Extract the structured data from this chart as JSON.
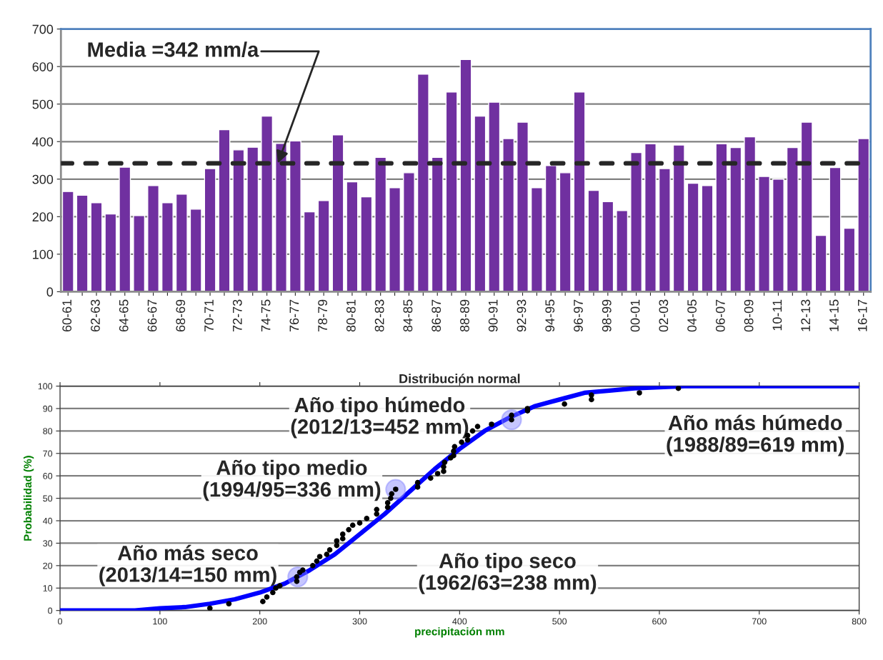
{
  "chart_data": [
    {
      "type": "bar",
      "categories": [
        "60-61",
        null,
        "62-63",
        null,
        "64-65",
        null,
        "66-67",
        null,
        "68-69",
        null,
        "70-71",
        null,
        "72-73",
        null,
        "74-75",
        null,
        "76-77",
        null,
        "78-79",
        null,
        "80-81",
        null,
        "82-83",
        null,
        "84-85",
        null,
        "86-87",
        null,
        "88-89",
        null,
        "90-91",
        null,
        "92-93",
        null,
        "94-95",
        null,
        "96-97",
        null,
        "98-99",
        null,
        "00-01",
        null,
        "02-03",
        null,
        "04-05",
        null,
        "06-07",
        null,
        "08-09",
        null,
        "10-11",
        null,
        "12-13",
        null,
        "14-15",
        null,
        "16-17"
      ],
      "values": [
        267,
        257,
        237,
        207,
        332,
        203,
        283,
        237,
        260,
        220,
        328,
        432,
        378,
        385,
        468,
        395,
        402,
        213,
        243,
        418,
        293,
        253,
        358,
        277,
        317,
        580,
        358,
        532,
        619,
        468,
        505,
        408,
        452,
        277,
        336,
        317,
        532,
        270,
        240,
        216,
        371,
        394,
        328,
        391,
        289,
        283,
        394,
        384,
        413,
        307,
        300,
        384,
        452,
        150,
        331,
        169,
        408
      ],
      "color": "#7030a0",
      "ylim": [
        0,
        700
      ],
      "yticks": [
        0,
        100,
        200,
        300,
        400,
        500,
        600,
        700
      ],
      "grid": "y",
      "legend": false,
      "ref_lines": [
        {
          "axis": "y",
          "value": 342,
          "label": "Media =342 mm/a",
          "color": "#262626",
          "line_style": "dashed"
        }
      ]
    },
    {
      "type": "scatter",
      "title": "Distribución normal",
      "xlabel": "precipitación mm",
      "ylabel": "Probabilidad (%)",
      "xlim": [
        0,
        800
      ],
      "xticks": [
        0,
        100,
        200,
        300,
        400,
        500,
        600,
        700,
        800
      ],
      "ylim": [
        0,
        100
      ],
      "yticks": [
        0,
        10,
        20,
        30,
        40,
        50,
        60,
        70,
        80,
        90,
        100
      ],
      "grid": "y",
      "legend": false,
      "series": [
        {
          "type": "line",
          "color": "#0000ff",
          "marker": "none",
          "x": [
            0,
            25,
            50,
            75,
            100,
            125,
            150,
            175,
            200,
            225,
            250,
            275,
            300,
            325,
            350,
            375,
            400,
            425,
            450,
            475,
            500,
            525,
            550,
            575,
            600,
            625,
            650,
            700,
            750,
            800
          ],
          "values": [
            0,
            0,
            0,
            0,
            1,
            1.5,
            3,
            5,
            8,
            12,
            18,
            25,
            34,
            43,
            53,
            63,
            72,
            80,
            86,
            91,
            94,
            97,
            98,
            99,
            99.5,
            100,
            100,
            100,
            100,
            100
          ]
        },
        {
          "type": "scatter",
          "color": "#000000",
          "marker": "circle",
          "x": [
            150,
            169,
            203,
            207,
            213,
            216,
            220,
            237,
            237,
            240,
            243,
            253,
            257,
            260,
            267,
            270,
            277,
            277,
            283,
            283,
            289,
            293,
            300,
            307,
            317,
            317,
            328,
            328,
            331,
            332,
            336,
            358,
            358,
            371,
            378,
            384,
            384,
            385,
            391,
            394,
            394,
            395,
            402,
            408,
            408,
            413,
            418,
            432,
            452,
            452,
            468,
            468,
            505,
            532,
            532,
            580,
            619
          ],
          "values": [
            1,
            3,
            4,
            6,
            8,
            10,
            11,
            13,
            15,
            17,
            18,
            20,
            22,
            24,
            25,
            27,
            29,
            31,
            32,
            34,
            36,
            38,
            39,
            41,
            43,
            45,
            46,
            48,
            50,
            52,
            54,
            55,
            57,
            59,
            61,
            62,
            64,
            66,
            68,
            69,
            71,
            73,
            75,
            76,
            78,
            80,
            82,
            83,
            85,
            87,
            89,
            90,
            92,
            94,
            96,
            97,
            99
          ]
        },
        {
          "type": "scatter",
          "color": "#8080ff",
          "marker": "circle",
          "x": [
            238,
            336,
            452
          ],
          "values": [
            15,
            54,
            85
          ]
        }
      ],
      "annotations": [
        "Año tipo húmedo\n(2012/13=452 mm)",
        "Año más húmedo\n(1988/89=619 mm)",
        "Año tipo medio\n(1994/95=336 mm)",
        "Año más seco\n(2013/14=150 mm)",
        "Año tipo seco\n(1962/63=238 mm)"
      ]
    }
  ]
}
